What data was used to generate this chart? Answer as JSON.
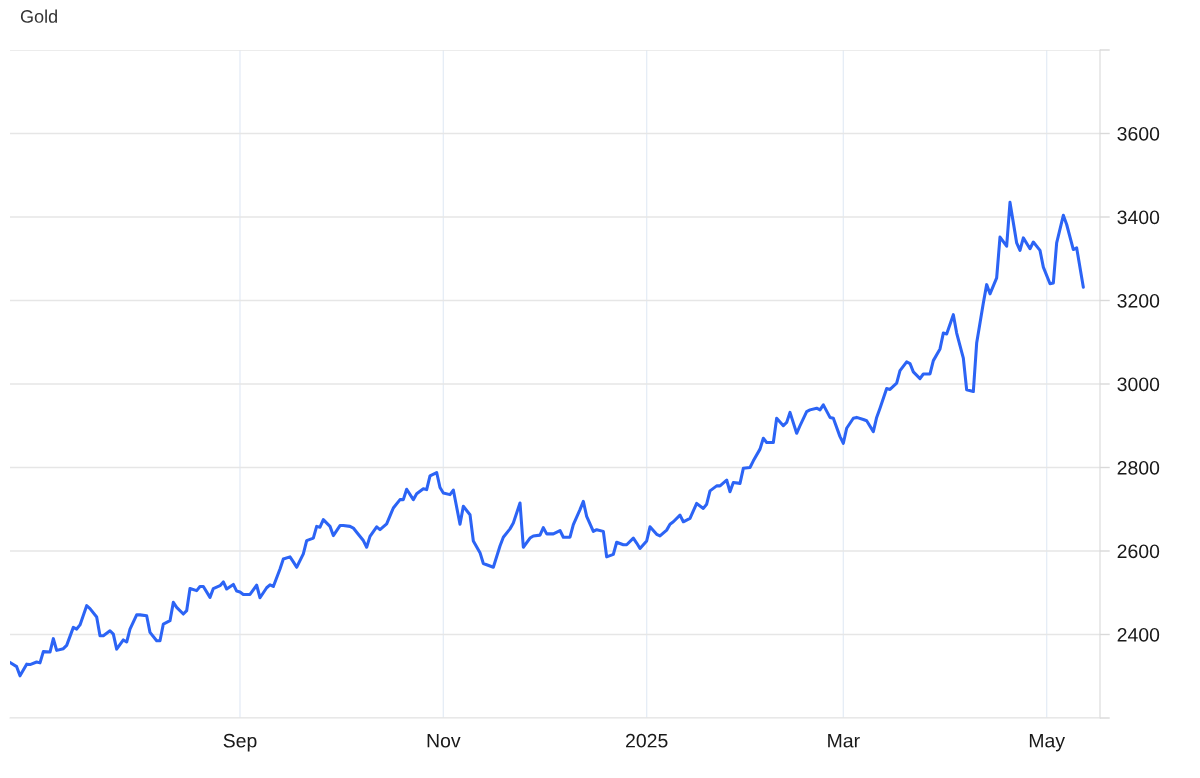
{
  "chart_data": {
    "type": "line",
    "title": "Gold",
    "color": "#2c64f5",
    "line_style": "solid",
    "grid": true,
    "xlim": [
      "2024-06-24",
      "2025-05-17"
    ],
    "xticks": [
      {
        "value": "2024-09-01",
        "label": "Sep"
      },
      {
        "value": "2024-11-01",
        "label": "Nov"
      },
      {
        "value": "2025-01-01",
        "label": "2025"
      },
      {
        "value": "2025-03-01",
        "label": "Mar"
      },
      {
        "value": "2025-05-01",
        "label": "May"
      }
    ],
    "ylim": [
      2200,
      3800
    ],
    "yticks": [
      {
        "value": 2200,
        "label": null
      },
      2400,
      2600,
      2800,
      3000,
      3200,
      3400,
      3600,
      {
        "value": 3800,
        "label": null
      }
    ],
    "x": [
      "2024-06-24",
      "2024-06-26",
      "2024-06-27",
      "2024-06-29",
      "2024-06-30",
      "2024-07-02",
      "2024-07-03",
      "2024-07-04",
      "2024-07-06",
      "2024-07-07",
      "2024-07-08",
      "2024-07-10",
      "2024-07-11",
      "2024-07-13",
      "2024-07-14",
      "2024-07-15",
      "2024-07-17",
      "2024-07-18",
      "2024-07-20",
      "2024-07-21",
      "2024-07-22",
      "2024-07-24",
      "2024-07-25",
      "2024-07-26",
      "2024-07-28",
      "2024-07-29",
      "2024-07-30",
      "2024-08-01",
      "2024-08-02",
      "2024-08-04",
      "2024-08-05",
      "2024-08-07",
      "2024-08-08",
      "2024-08-09",
      "2024-08-11",
      "2024-08-12",
      "2024-08-13",
      "2024-08-15",
      "2024-08-16",
      "2024-08-17",
      "2024-08-19",
      "2024-08-20",
      "2024-08-21",
      "2024-08-23",
      "2024-08-24",
      "2024-08-26",
      "2024-08-27",
      "2024-08-28",
      "2024-08-30",
      "2024-08-31",
      "2024-09-01",
      "2024-09-02",
      "2024-09-04",
      "2024-09-06",
      "2024-09-07",
      "2024-09-09",
      "2024-09-10",
      "2024-09-11",
      "2024-09-13",
      "2024-09-14",
      "2024-09-16",
      "2024-09-17",
      "2024-09-18",
      "2024-09-20",
      "2024-09-21",
      "2024-09-23",
      "2024-09-24",
      "2024-09-25",
      "2024-09-26",
      "2024-09-28",
      "2024-09-29",
      "2024-10-01",
      "2024-10-02",
      "2024-10-04",
      "2024-10-05",
      "2024-10-06",
      "2024-10-08",
      "2024-10-09",
      "2024-10-10",
      "2024-10-12",
      "2024-10-13",
      "2024-10-15",
      "2024-10-16",
      "2024-10-17",
      "2024-10-19",
      "2024-10-20",
      "2024-10-21",
      "2024-10-23",
      "2024-10-24",
      "2024-10-26",
      "2024-10-27",
      "2024-10-28",
      "2024-10-30",
      "2024-10-31",
      "2024-11-01",
      "2024-11-03",
      "2024-11-04",
      "2024-11-06",
      "2024-11-07",
      "2024-11-09",
      "2024-11-10",
      "2024-11-12",
      "2024-11-13",
      "2024-11-15",
      "2024-11-16",
      "2024-11-18",
      "2024-11-19",
      "2024-11-21",
      "2024-11-22",
      "2024-11-24",
      "2024-11-25",
      "2024-11-27",
      "2024-11-28",
      "2024-11-30",
      "2024-12-01",
      "2024-12-02",
      "2024-12-04",
      "2024-12-06",
      "2024-12-07",
      "2024-12-09",
      "2024-12-10",
      "2024-12-12",
      "2024-12-13",
      "2024-12-14",
      "2024-12-16",
      "2024-12-17",
      "2024-12-19",
      "2024-12-20",
      "2024-12-22",
      "2024-12-23",
      "2024-12-25",
      "2024-12-26",
      "2024-12-28",
      "2024-12-29",
      "2024-12-30",
      "2025-01-01",
      "2025-01-02",
      "2025-01-04",
      "2025-01-05",
      "2025-01-07",
      "2025-01-08",
      "2025-01-09",
      "2025-01-11",
      "2025-01-12",
      "2025-01-14",
      "2025-01-15",
      "2025-01-16",
      "2025-01-18",
      "2025-01-19",
      "2025-01-20",
      "2025-01-22",
      "2025-01-23",
      "2025-01-25",
      "2025-01-26",
      "2025-01-27",
      "2025-01-29",
      "2025-01-30",
      "2025-02-01",
      "2025-02-02",
      "2025-02-04",
      "2025-02-05",
      "2025-02-06",
      "2025-02-08",
      "2025-02-09",
      "2025-02-11",
      "2025-02-12",
      "2025-02-13",
      "2025-02-15",
      "2025-02-16",
      "2025-02-18",
      "2025-02-19",
      "2025-02-21",
      "2025-02-22",
      "2025-02-23",
      "2025-02-25",
      "2025-02-26",
      "2025-02-28",
      "2025-03-01",
      "2025-03-02",
      "2025-03-04",
      "2025-03-05",
      "2025-03-07",
      "2025-03-08",
      "2025-03-10",
      "2025-03-11",
      "2025-03-12",
      "2025-03-14",
      "2025-03-15",
      "2025-03-17",
      "2025-03-18",
      "2025-03-20",
      "2025-03-21",
      "2025-03-22",
      "2025-03-24",
      "2025-03-25",
      "2025-03-27",
      "2025-03-28",
      "2025-03-30",
      "2025-03-31",
      "2025-04-01",
      "2025-04-03",
      "2025-04-04",
      "2025-04-06",
      "2025-04-07",
      "2025-04-09",
      "2025-04-10",
      "2025-04-12",
      "2025-04-13",
      "2025-04-14",
      "2025-04-16",
      "2025-04-17",
      "2025-04-19",
      "2025-04-20",
      "2025-04-22",
      "2025-04-23",
      "2025-04-24",
      "2025-04-26",
      "2025-04-27",
      "2025-04-29",
      "2025-04-30",
      "2025-05-02",
      "2025-05-03",
      "2025-05-04",
      "2025-05-06",
      "2025-05-07",
      "2025-05-09",
      "2025-05-10",
      "2025-05-12"
    ],
    "values": [
      2333,
      2323,
      2301,
      2329,
      2328,
      2334,
      2332,
      2359,
      2358,
      2390,
      2362,
      2366,
      2374,
      2417,
      2413,
      2423,
      2469,
      2462,
      2442,
      2397,
      2397,
      2409,
      2401,
      2365,
      2387,
      2382,
      2413,
      2447,
      2447,
      2445,
      2405,
      2385,
      2385,
      2425,
      2433,
      2477,
      2465,
      2449,
      2457,
      2510,
      2505,
      2515,
      2515,
      2489,
      2510,
      2517,
      2526,
      2509,
      2520,
      2504,
      2502,
      2496,
      2496,
      2518,
      2488,
      2512,
      2519,
      2515,
      2557,
      2581,
      2586,
      2574,
      2561,
      2593,
      2625,
      2631,
      2659,
      2657,
      2675,
      2659,
      2637,
      2661,
      2661,
      2659,
      2655,
      2645,
      2625,
      2609,
      2635,
      2658,
      2651,
      2665,
      2684,
      2703,
      2723,
      2723,
      2748,
      2723,
      2737,
      2749,
      2747,
      2780,
      2788,
      2752,
      2739,
      2735,
      2746,
      2664,
      2707,
      2687,
      2624,
      2596,
      2570,
      2564,
      2561,
      2612,
      2633,
      2653,
      2667,
      2715,
      2609,
      2631,
      2636,
      2638,
      2656,
      2641,
      2641,
      2649,
      2633,
      2633,
      2663,
      2699,
      2719,
      2683,
      2647,
      2651,
      2647,
      2586,
      2592,
      2621,
      2615,
      2615,
      2631,
      2619,
      2606,
      2624,
      2658,
      2640,
      2636,
      2650,
      2664,
      2670,
      2686,
      2670,
      2678,
      2696,
      2714,
      2702,
      2712,
      2744,
      2756,
      2756,
      2770,
      2742,
      2764,
      2762,
      2798,
      2800,
      2816,
      2844,
      2870,
      2860,
      2860,
      2918,
      2900,
      2908,
      2932,
      2882,
      2900,
      2934,
      2938,
      2942,
      2938,
      2950,
      2920,
      2918,
      2874,
      2858,
      2894,
      2918,
      2920,
      2915,
      2912,
      2886,
      2920,
      2942,
      2989,
      2987,
      3002,
      3032,
      3053,
      3049,
      3029,
      3013,
      3024,
      3024,
      3056,
      3084,
      3122,
      3120,
      3166,
      3122,
      3062,
      2986,
      2982,
      3098,
      3194,
      3238,
      3216,
      3254,
      3352,
      3330,
      3435,
      3338,
      3320,
      3350,
      3324,
      3340,
      3320,
      3280,
      3240,
      3242,
      3338,
      3404,
      3382,
      3322,
      3326,
      3232
    ]
  }
}
